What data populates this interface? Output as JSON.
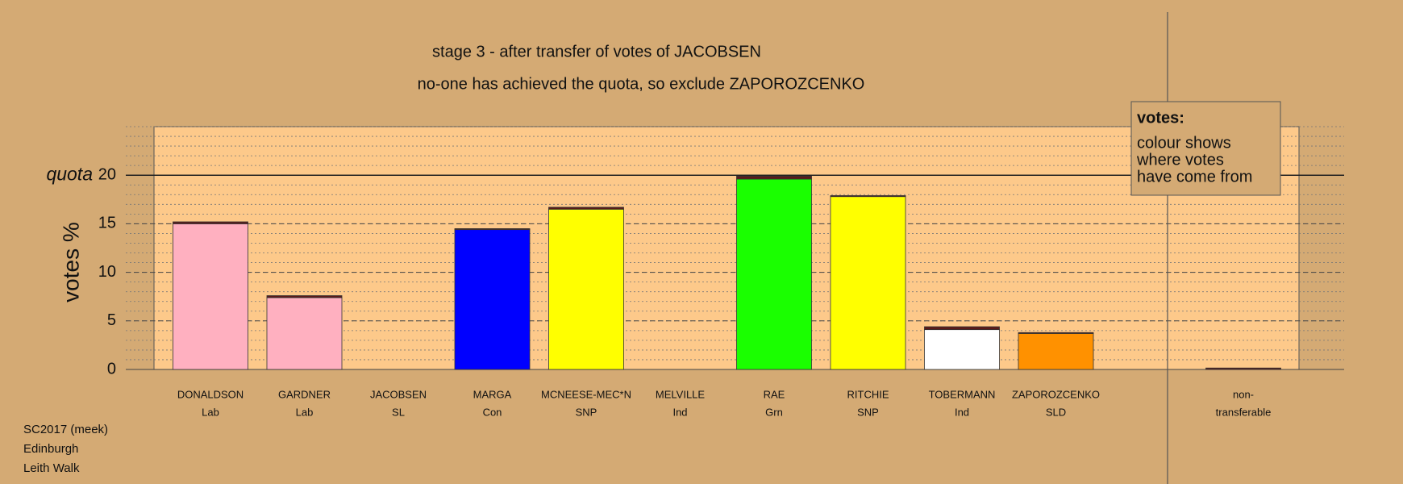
{
  "chart_data": {
    "type": "bar",
    "title": "stage 3 - after transfer of votes of JACOBSEN",
    "subtitle": "no-one has achieved the quota, so exclude ZAPOROZCENKO",
    "y_label": "votes %",
    "categories": [
      "DONALDSON",
      "GARDNER",
      "JACOBSEN",
      "MARGA",
      "MCNEESE-MEC*N",
      "MELVILLE",
      "RAE",
      "RITCHIE",
      "TOBERMANN",
      "ZAPOROZCENKO",
      "non-"
    ],
    "parties": [
      "Lab",
      "Lab",
      "SL",
      "Con",
      "SNP",
      "Ind",
      "Grn",
      "SNP",
      "Ind",
      "SLD",
      "transferable"
    ],
    "series": [
      {
        "colors": [
          "#ffb0c0",
          "#ffb0c0",
          "#ffb0c0",
          "#0000ff",
          "#ffff00",
          "#ffffff",
          "#1aff00",
          "#ffff00",
          "#ffffff",
          "#ff9100",
          "#ffffff"
        ],
        "values": [
          15.0,
          7.4,
          0,
          14.4,
          16.5,
          0,
          19.6,
          17.8,
          4.1,
          3.7,
          0
        ]
      },
      {
        "color": "#5a1a1a",
        "values": [
          0.2,
          0.2,
          0,
          0.1,
          0.2,
          0,
          0.3,
          0.1,
          0.3,
          0.1,
          0.15
        ]
      }
    ],
    "ylim": [
      0,
      25
    ],
    "yticks": [
      0,
      5,
      10,
      15,
      20
    ],
    "grid": true,
    "minor_grid": true,
    "quota": {
      "label": "quota",
      "value": 20
    },
    "legend": {
      "title": "votes:",
      "lines": [
        "colour shows",
        "where votes",
        "have come from"
      ]
    },
    "footnote": [
      "SC2017 (meek)",
      "Edinburgh",
      "Leith Walk"
    ]
  }
}
